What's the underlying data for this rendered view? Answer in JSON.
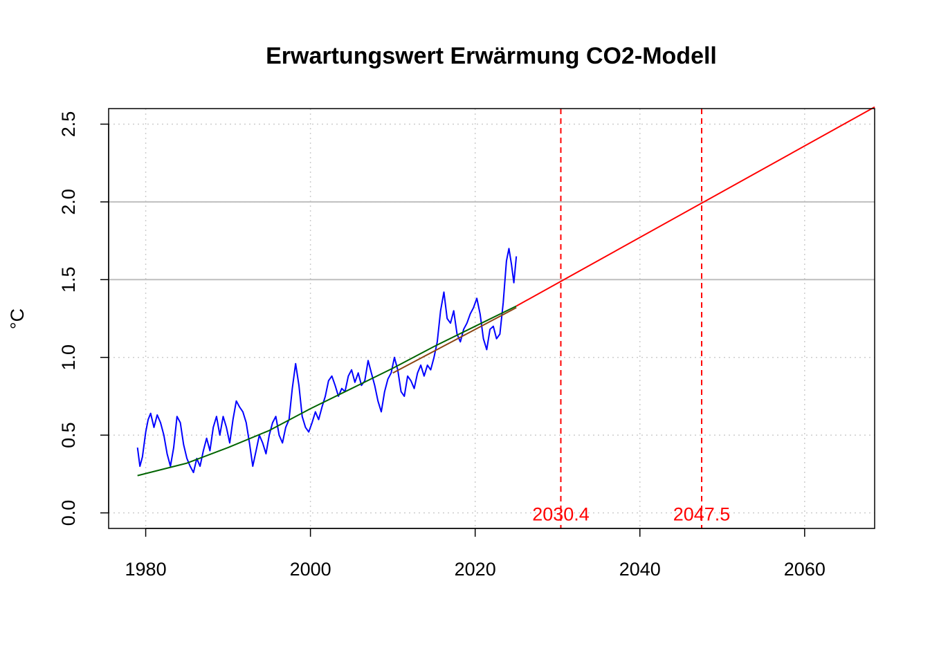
{
  "chart_data": {
    "type": "line",
    "title": "Erwartungswert Erwärmung CO2-Modell",
    "xlabel": "",
    "ylabel": "°C",
    "xlim": [
      1975.5,
      2068.5
    ],
    "ylim": [
      -0.1,
      2.6
    ],
    "x_ticks": [
      1980,
      2000,
      2020,
      2040,
      2060
    ],
    "y_ticks": [
      0.0,
      0.5,
      1.0,
      1.5,
      2.0,
      2.5
    ],
    "x_tick_labels": [
      "1980",
      "2000",
      "2020",
      "2040",
      "2060"
    ],
    "y_tick_labels": [
      "0.0",
      "0.5",
      "1.0",
      "1.5",
      "2.0",
      "2.5"
    ],
    "grid": "dotted at ticks; solid light gray at 1.5 and 2.0",
    "threshold_lines_y": [
      1.5,
      2.0
    ],
    "colors": {
      "observed": "#0000ff",
      "model_fit": "#006400",
      "recent_trend": "#8b4513",
      "projection": "#ff0000",
      "grid": "#cccccc",
      "threshold": "#bebebe"
    },
    "series": [
      {
        "role": "observed",
        "style": "solid",
        "points": [
          [
            1979.0,
            0.42
          ],
          [
            1979.3,
            0.3
          ],
          [
            1979.6,
            0.36
          ],
          [
            1980.0,
            0.52
          ],
          [
            1980.3,
            0.6
          ],
          [
            1980.6,
            0.64
          ],
          [
            1981.0,
            0.55
          ],
          [
            1981.4,
            0.63
          ],
          [
            1981.8,
            0.58
          ],
          [
            1982.2,
            0.5
          ],
          [
            1982.6,
            0.38
          ],
          [
            1983.0,
            0.3
          ],
          [
            1983.4,
            0.42
          ],
          [
            1983.8,
            0.62
          ],
          [
            1984.2,
            0.58
          ],
          [
            1984.6,
            0.44
          ],
          [
            1985.0,
            0.35
          ],
          [
            1985.4,
            0.3
          ],
          [
            1985.8,
            0.26
          ],
          [
            1986.2,
            0.35
          ],
          [
            1986.6,
            0.3
          ],
          [
            1987.0,
            0.4
          ],
          [
            1987.4,
            0.48
          ],
          [
            1987.8,
            0.4
          ],
          [
            1988.2,
            0.55
          ],
          [
            1988.6,
            0.62
          ],
          [
            1989.0,
            0.5
          ],
          [
            1989.4,
            0.62
          ],
          [
            1989.8,
            0.55
          ],
          [
            1990.2,
            0.45
          ],
          [
            1990.6,
            0.6
          ],
          [
            1991.0,
            0.72
          ],
          [
            1991.4,
            0.68
          ],
          [
            1991.8,
            0.65
          ],
          [
            1992.2,
            0.58
          ],
          [
            1992.6,
            0.45
          ],
          [
            1993.0,
            0.3
          ],
          [
            1993.4,
            0.4
          ],
          [
            1993.8,
            0.5
          ],
          [
            1994.2,
            0.45
          ],
          [
            1994.6,
            0.38
          ],
          [
            1995.0,
            0.5
          ],
          [
            1995.4,
            0.58
          ],
          [
            1995.8,
            0.62
          ],
          [
            1996.2,
            0.5
          ],
          [
            1996.6,
            0.45
          ],
          [
            1997.0,
            0.55
          ],
          [
            1997.4,
            0.6
          ],
          [
            1997.8,
            0.8
          ],
          [
            1998.2,
            0.96
          ],
          [
            1998.6,
            0.82
          ],
          [
            1999.0,
            0.62
          ],
          [
            1999.4,
            0.55
          ],
          [
            1999.8,
            0.52
          ],
          [
            2000.2,
            0.58
          ],
          [
            2000.6,
            0.65
          ],
          [
            2001.0,
            0.6
          ],
          [
            2001.4,
            0.68
          ],
          [
            2001.8,
            0.75
          ],
          [
            2002.2,
            0.85
          ],
          [
            2002.6,
            0.88
          ],
          [
            2003.0,
            0.82
          ],
          [
            2003.4,
            0.75
          ],
          [
            2003.8,
            0.8
          ],
          [
            2004.2,
            0.78
          ],
          [
            2004.6,
            0.88
          ],
          [
            2005.0,
            0.92
          ],
          [
            2005.4,
            0.84
          ],
          [
            2005.8,
            0.9
          ],
          [
            2006.2,
            0.82
          ],
          [
            2006.6,
            0.85
          ],
          [
            2007.0,
            0.98
          ],
          [
            2007.4,
            0.9
          ],
          [
            2007.8,
            0.82
          ],
          [
            2008.2,
            0.72
          ],
          [
            2008.6,
            0.65
          ],
          [
            2009.0,
            0.78
          ],
          [
            2009.4,
            0.86
          ],
          [
            2009.8,
            0.9
          ],
          [
            2010.2,
            1.0
          ],
          [
            2010.6,
            0.92
          ],
          [
            2011.0,
            0.78
          ],
          [
            2011.4,
            0.75
          ],
          [
            2011.8,
            0.88
          ],
          [
            2012.2,
            0.85
          ],
          [
            2012.6,
            0.8
          ],
          [
            2013.0,
            0.9
          ],
          [
            2013.4,
            0.95
          ],
          [
            2013.8,
            0.88
          ],
          [
            2014.2,
            0.95
          ],
          [
            2014.6,
            0.92
          ],
          [
            2015.0,
            1.0
          ],
          [
            2015.4,
            1.1
          ],
          [
            2015.8,
            1.3
          ],
          [
            2016.2,
            1.42
          ],
          [
            2016.6,
            1.25
          ],
          [
            2017.0,
            1.22
          ],
          [
            2017.4,
            1.3
          ],
          [
            2017.8,
            1.15
          ],
          [
            2018.2,
            1.1
          ],
          [
            2018.6,
            1.18
          ],
          [
            2019.0,
            1.22
          ],
          [
            2019.4,
            1.28
          ],
          [
            2019.8,
            1.32
          ],
          [
            2020.2,
            1.38
          ],
          [
            2020.6,
            1.28
          ],
          [
            2021.0,
            1.12
          ],
          [
            2021.4,
            1.05
          ],
          [
            2021.8,
            1.18
          ],
          [
            2022.2,
            1.2
          ],
          [
            2022.6,
            1.12
          ],
          [
            2023.0,
            1.15
          ],
          [
            2023.4,
            1.35
          ],
          [
            2023.8,
            1.62
          ],
          [
            2024.1,
            1.7
          ],
          [
            2024.4,
            1.6
          ],
          [
            2024.7,
            1.48
          ],
          [
            2025.0,
            1.65
          ]
        ]
      },
      {
        "role": "model_fit",
        "style": "solid",
        "points": [
          [
            1979.0,
            0.24
          ],
          [
            1985.0,
            0.32
          ],
          [
            1990.0,
            0.42
          ],
          [
            1995.0,
            0.53
          ],
          [
            2000.0,
            0.67
          ],
          [
            2005.0,
            0.8
          ],
          [
            2010.0,
            0.93
          ],
          [
            2015.0,
            1.07
          ],
          [
            2020.0,
            1.2
          ],
          [
            2025.0,
            1.33
          ]
        ]
      },
      {
        "role": "recent_trend",
        "style": "solid",
        "points": [
          [
            2010.0,
            0.9
          ],
          [
            2025.0,
            1.32
          ]
        ]
      },
      {
        "role": "projection",
        "style": "solid",
        "points": [
          [
            2025.0,
            1.33
          ],
          [
            2068.5,
            2.61
          ]
        ]
      }
    ],
    "vertical_lines": [
      {
        "x": 2030.4,
        "label": "2030.4",
        "style": "dashed"
      },
      {
        "x": 2047.5,
        "label": "2047.5",
        "style": "dashed"
      }
    ]
  }
}
